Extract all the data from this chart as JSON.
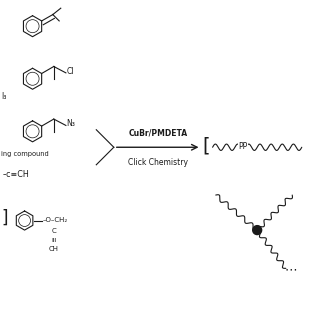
{
  "bg_color": "#ffffff",
  "line_color": "#1a1a1a",
  "fig_width": 3.2,
  "fig_height": 3.2,
  "dpi": 100,
  "xlim": [
    0,
    10
  ],
  "ylim": [
    0,
    10
  ]
}
